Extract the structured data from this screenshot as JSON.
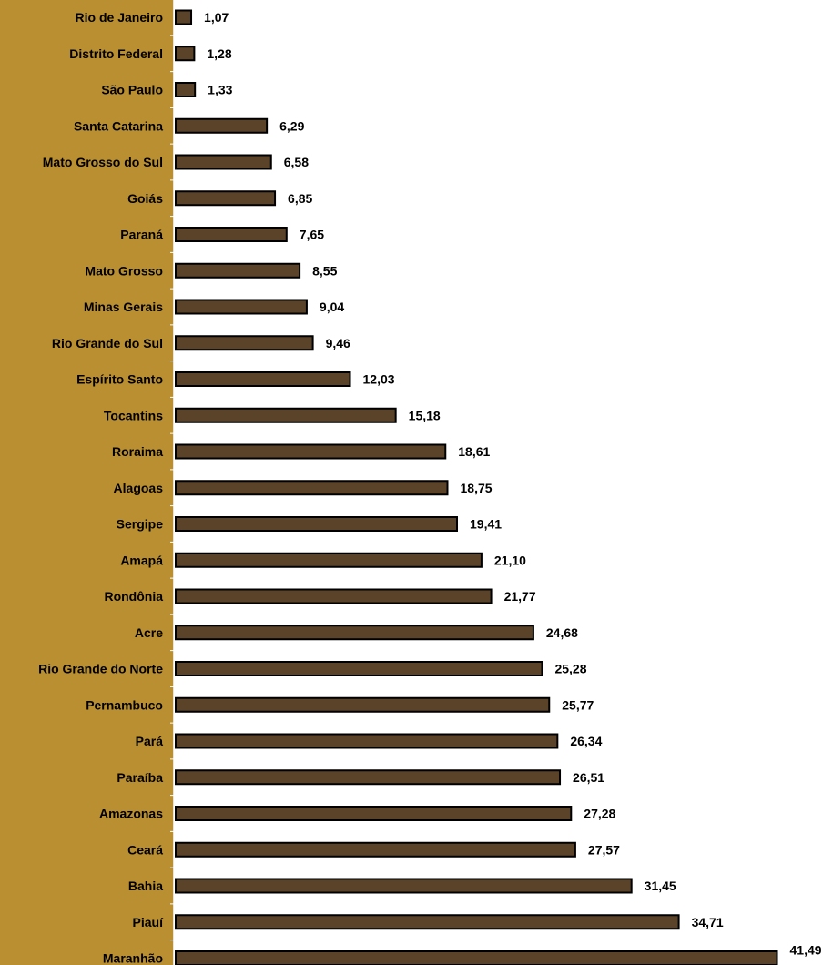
{
  "chart_data": {
    "type": "bar",
    "orientation": "horizontal",
    "categories": [
      "Rio de Janeiro",
      "Distrito Federal",
      "São Paulo",
      "Santa Catarina",
      "Mato Grosso do Sul",
      "Goiás",
      "Paraná",
      "Mato Grosso",
      "Minas Gerais",
      "Rio Grande do Sul",
      "Espírito Santo",
      "Tocantins",
      "Roraima",
      "Alagoas",
      "Sergipe",
      "Amapá",
      "Rondônia",
      "Acre",
      "Rio Grande do Norte",
      "Pernambuco",
      "Pará",
      "Paraíba",
      "Amazonas",
      "Ceará",
      "Bahia",
      "Piauí",
      "Maranhão"
    ],
    "values": [
      1.07,
      1.28,
      1.33,
      6.29,
      6.58,
      6.85,
      7.65,
      8.55,
      9.04,
      9.46,
      12.03,
      15.18,
      18.61,
      18.75,
      19.41,
      21.1,
      21.77,
      24.68,
      25.28,
      25.77,
      26.34,
      26.51,
      27.28,
      27.57,
      31.45,
      34.71,
      41.49
    ],
    "value_labels": [
      "1,07",
      "1,28",
      "1,33",
      "6,29",
      "6,58",
      "6,85",
      "7,65",
      "8,55",
      "9,04",
      "9,46",
      "12,03",
      "15,18",
      "18,61",
      "18,75",
      "19,41",
      "21,10",
      "21,77",
      "24,68",
      "25,28",
      "25,77",
      "26,34",
      "26,51",
      "27,28",
      "27,57",
      "31,45",
      "34,71",
      "41,49"
    ],
    "title": "",
    "xlabel": "",
    "ylabel": "",
    "xlim": [
      0,
      42
    ],
    "grid": false,
    "legend": "none",
    "colors": {
      "bar_fill": "#5a4328",
      "bar_stroke": "#000000",
      "label_panel": "#b98f32",
      "axis_line": "#ffffff",
      "background": "#ffffff"
    }
  }
}
